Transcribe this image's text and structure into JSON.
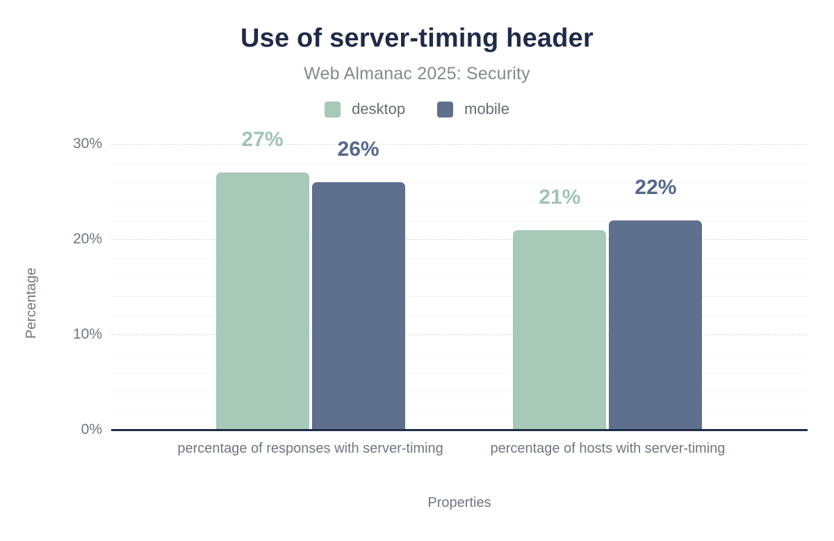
{
  "header": {
    "title": "Use of server-timing header",
    "subtitle": "Web Almanac 2025: Security"
  },
  "chart_data": {
    "type": "bar",
    "title": "Use of server-timing header",
    "subtitle": "Web Almanac 2025: Security",
    "categories": [
      "percentage of responses with server-timing",
      "percentage of hosts with server-timing"
    ],
    "series": [
      {
        "name": "desktop",
        "values": [
          27,
          21
        ],
        "color": "#a7c9b8",
        "label_color": "#a0c5b2"
      },
      {
        "name": "mobile",
        "values": [
          26,
          22
        ],
        "color": "#5f708e",
        "label_color": "#54688c"
      }
    ],
    "value_suffix": "%",
    "xlabel": "Properties",
    "ylabel": "Percentage",
    "ylim": [
      0,
      32
    ],
    "yticks": [
      0,
      10,
      20,
      30
    ],
    "ytick_suffix": "%",
    "grid": {
      "minor_step": 2,
      "major_step": 10,
      "grid_on": true
    },
    "legend_position": "top"
  },
  "colors": {
    "title": "#1f2b47",
    "axis_line": "#1d2c48",
    "desktop": "#a7c9b8",
    "mobile": "#5f708e",
    "muted_text": "#6f7681",
    "subtitle_text": "#85898f",
    "gridline_major": "#dcdcdc",
    "gridline_minor": "#f4f4f4"
  }
}
